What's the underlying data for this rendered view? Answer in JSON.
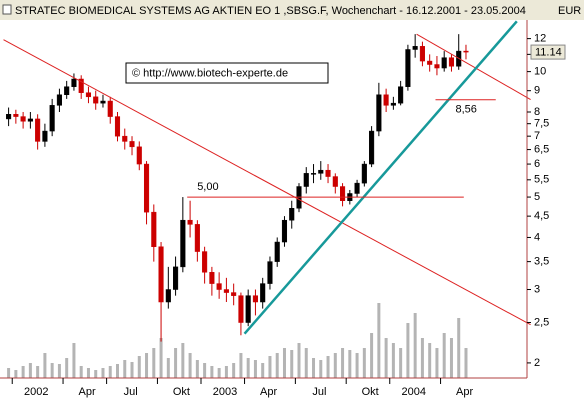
{
  "chart_data": {
    "type": "candlestick",
    "title": "STRATEC BIOMEDICAL SYSTEMS AG AKTIEN EO 1 ,SBSG.F, Wochenchart - 16.12.2001 - 23.05.2004",
    "currency": "EUR",
    "watermark": "© http://www.biotech-experte.de",
    "categories": [
      null,
      "2002",
      null,
      null,
      null,
      null,
      null,
      null,
      "Apr",
      null,
      null,
      null,
      null,
      null,
      "Jul",
      null,
      null,
      null,
      null,
      null,
      null,
      "Okt",
      null,
      null,
      null,
      null,
      null,
      "2003",
      null,
      null,
      null,
      null,
      null,
      "Apr",
      null,
      null,
      null,
      null,
      null,
      null,
      "Jul",
      null,
      null,
      null,
      null,
      null,
      null,
      "Okt",
      null,
      null,
      null,
      null,
      null,
      "2004",
      null,
      null,
      null,
      null,
      null,
      null,
      "Apr",
      null,
      null,
      null
    ],
    "open": [
      7.7,
      7.9,
      7.8,
      7.6,
      7.7,
      6.8,
      7.2,
      8.3,
      8.8,
      9.2,
      9.6,
      8.9,
      8.7,
      8.4,
      8.5,
      7.8,
      7.0,
      6.8,
      6.6,
      6.0,
      4.6,
      3.8,
      2.8,
      3.0,
      3.4,
      4.4,
      4.3,
      3.7,
      3.3,
      3.1,
      3.0,
      2.95,
      2.9,
      2.5,
      2.9,
      2.8,
      3.1,
      3.5,
      3.9,
      4.4,
      4.7,
      5.3,
      5.7,
      5.7,
      5.8,
      5.6,
      5.3,
      4.9,
      5.1,
      5.4,
      6.0,
      7.2,
      8.8,
      8.3,
      8.4,
      9.2,
      11.3,
      11.5,
      10.6,
      10.4,
      10.2,
      10.8,
      10.3,
      11.2
    ],
    "high": [
      8.2,
      8.1,
      8.0,
      8.0,
      7.9,
      7.5,
      8.6,
      9.1,
      9.5,
      9.9,
      9.8,
      9.2,
      9.0,
      8.8,
      8.7,
      8.0,
      7.3,
      7.0,
      6.8,
      6.1,
      4.8,
      3.9,
      3.4,
      3.6,
      5.0,
      4.9,
      4.4,
      3.8,
      3.4,
      3.3,
      3.2,
      3.1,
      2.95,
      3.0,
      3.0,
      3.2,
      3.6,
      4.0,
      4.5,
      4.9,
      5.4,
      5.9,
      6.0,
      6.1,
      6.0,
      5.7,
      5.4,
      5.2,
      5.5,
      6.1,
      7.4,
      9.4,
      9.1,
      8.7,
      9.5,
      11.6,
      12.3,
      11.8,
      11.0,
      10.9,
      11.2,
      11.0,
      12.3,
      11.6
    ],
    "low": [
      7.4,
      7.5,
      7.3,
      7.3,
      6.5,
      6.6,
      7.0,
      8.0,
      8.6,
      9.0,
      8.6,
      8.4,
      8.1,
      8.2,
      7.5,
      6.8,
      6.5,
      6.3,
      5.8,
      4.3,
      3.5,
      2.25,
      2.7,
      2.9,
      3.3,
      4.0,
      3.5,
      3.1,
      2.9,
      2.85,
      2.8,
      2.75,
      2.33,
      2.45,
      2.6,
      2.7,
      3.0,
      3.4,
      3.8,
      4.2,
      4.6,
      5.1,
      5.4,
      5.5,
      5.4,
      5.1,
      4.75,
      4.8,
      5.0,
      5.3,
      5.9,
      7.0,
      8.0,
      8.1,
      8.3,
      9.0,
      10.8,
      10.3,
      10.0,
      9.8,
      10.0,
      10.0,
      10.1,
      10.7
    ],
    "close": [
      7.9,
      7.8,
      7.6,
      7.7,
      6.8,
      7.2,
      8.3,
      8.8,
      9.2,
      9.6,
      8.9,
      8.7,
      8.4,
      8.5,
      7.8,
      7.0,
      6.8,
      6.6,
      6.0,
      4.6,
      3.8,
      2.8,
      3.0,
      3.4,
      4.4,
      4.3,
      3.7,
      3.3,
      3.1,
      3.0,
      2.95,
      2.9,
      2.5,
      2.9,
      2.8,
      3.1,
      3.5,
      3.9,
      4.4,
      4.7,
      5.3,
      5.7,
      5.7,
      5.8,
      5.6,
      5.3,
      4.9,
      5.1,
      5.4,
      6.0,
      7.2,
      8.8,
      8.3,
      8.4,
      9.2,
      11.3,
      11.5,
      10.6,
      10.4,
      10.2,
      10.8,
      10.3,
      11.2,
      11.14
    ],
    "volume": [
      10,
      8,
      12,
      15,
      12,
      25,
      15,
      14,
      20,
      35,
      12,
      10,
      8,
      10,
      12,
      14,
      18,
      16,
      22,
      25,
      30,
      40,
      20,
      30,
      35,
      25,
      18,
      15,
      12,
      10,
      12,
      15,
      25,
      20,
      18,
      15,
      22,
      25,
      30,
      28,
      35,
      30,
      20,
      18,
      22,
      25,
      30,
      28,
      25,
      30,
      45,
      75,
      40,
      35,
      30,
      55,
      65,
      40,
      35,
      30,
      45,
      40,
      60,
      30
    ],
    "up_color": "#000000",
    "down_color": "#cc0000",
    "volume_color": "#b4b4b4",
    "log_y": true,
    "ylim": [
      1.84,
      13.3
    ],
    "yticks": [
      2,
      {
        "value": 2.5,
        "label": "2,5"
      },
      3,
      {
        "value": 3.5,
        "label": "3,5"
      },
      4,
      {
        "value": 4.5,
        "label": "4,5"
      },
      5,
      {
        "value": 5.5,
        "label": "5,5"
      },
      6,
      {
        "value": 6.5,
        "label": "6,5"
      },
      7,
      {
        "value": 7.5,
        "label": "7,5"
      },
      8,
      9,
      10,
      11,
      12
    ],
    "lines": [
      {
        "color": "#dd2222",
        "x": [
          -0.7,
          71.9
        ],
        "y": [
          11.93,
          2.47
        ]
      },
      {
        "color": "#dd2222",
        "x": [
          56.2,
          71.9
        ],
        "y": [
          12.3,
          8.57
        ]
      },
      {
        "color": "#17999a",
        "x": [
          32.5,
          70.0
        ],
        "y": [
          2.35,
          13.2
        ]
      }
    ],
    "levels": [
      {
        "value": 5,
        "label": "5,00",
        "x": [
          24.6,
          62.7
        ],
        "color": "#dd2222"
      },
      {
        "value": 8.56,
        "label": "8,56",
        "x": [
          58.8,
          67.1
        ],
        "color": "#dd2222"
      }
    ]
  }
}
